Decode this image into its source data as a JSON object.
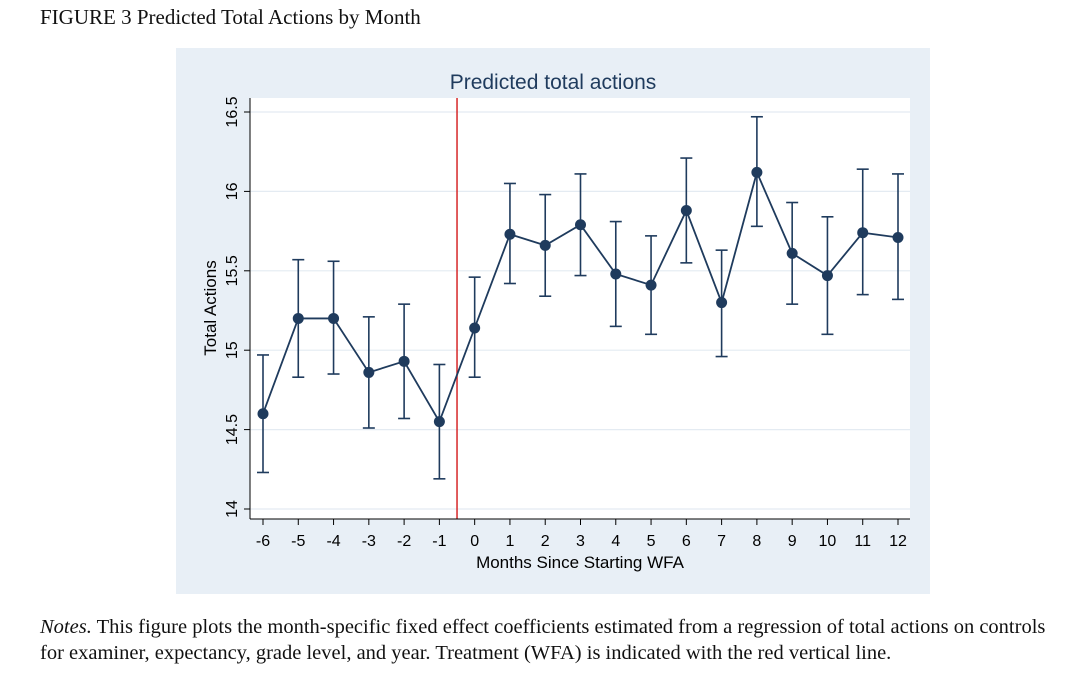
{
  "figure": {
    "caption": "FIGURE 3 Predicted Total Actions by Month"
  },
  "notes": {
    "label": "Notes.",
    "text": " This figure plots the month-specific fixed effect coefficients estimated from a regression of total actions on controls for examiner, expectancy, grade level, and year. Treatment (WFA) is indicated with the red vertical line."
  },
  "colors": {
    "panel_background": "#e8eff6",
    "plot_background": "#ffffff",
    "series": "#1f3b5d",
    "treatment_line": "#d62728",
    "grid": "#e4ebf2"
  },
  "chart_data": {
    "type": "line",
    "title": "Predicted total actions",
    "xlabel": "Months Since Starting WFA",
    "ylabel": "Total Actions",
    "x": [
      -6,
      -5,
      -4,
      -3,
      -2,
      -1,
      0,
      1,
      2,
      3,
      4,
      5,
      6,
      7,
      8,
      9,
      10,
      11,
      12
    ],
    "xtick_labels": [
      "-6",
      "-5",
      "-4",
      "-3",
      "-2",
      "-1",
      "0",
      "1",
      "2",
      "3",
      "4",
      "5",
      "6",
      "7",
      "8",
      "9",
      "10",
      "11",
      "12"
    ],
    "xlim": [
      -6.5,
      12.5
    ],
    "ylim": [
      14,
      16.5
    ],
    "yticks": [
      14,
      14.5,
      15,
      15.5,
      16,
      16.5
    ],
    "ytick_labels": [
      "14",
      "14.5",
      "15",
      "15.5",
      "16",
      "16.5"
    ],
    "grid": true,
    "error_bars": true,
    "series": [
      {
        "values": [
          14.6,
          15.2,
          15.2,
          14.86,
          14.93,
          14.55,
          15.14,
          15.73,
          15.66,
          15.79,
          15.48,
          15.41,
          15.88,
          15.3,
          16.12,
          15.61,
          15.47,
          15.74,
          15.71
        ],
        "ci_low": [
          14.23,
          14.83,
          14.85,
          14.51,
          14.57,
          14.19,
          14.83,
          15.42,
          15.34,
          15.47,
          15.15,
          15.1,
          15.55,
          14.96,
          15.78,
          15.29,
          15.1,
          15.35,
          15.32
        ],
        "ci_high": [
          14.97,
          15.57,
          15.56,
          15.21,
          15.29,
          14.91,
          15.46,
          16.05,
          15.98,
          16.11,
          15.81,
          15.72,
          16.21,
          15.63,
          16.47,
          15.93,
          15.84,
          16.14,
          16.11
        ]
      }
    ],
    "reference_line": {
      "orientation": "vertical",
      "x": -0.5,
      "color": "#d62728"
    }
  }
}
